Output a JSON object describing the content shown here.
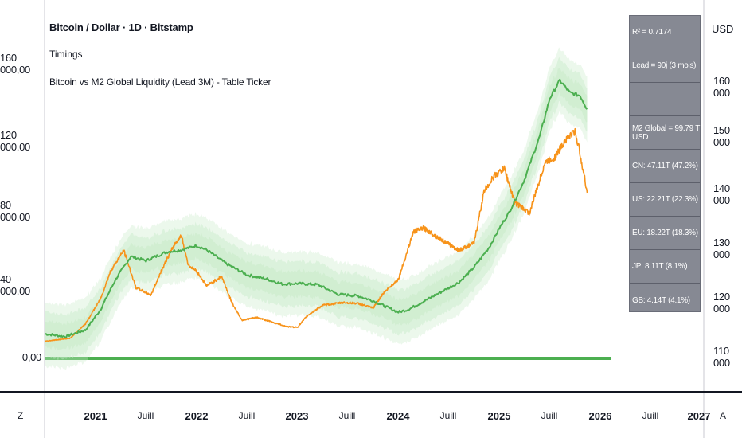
{
  "header": {
    "symbol_title": "Bitcoin / Dollar · 1D · Bitstamp",
    "indicator_1": "Timings",
    "indicator_2": "Bitcoin vs M2 Global Liquidity (Lead 3M) - Table Ticker"
  },
  "right_axis": {
    "unit": "USD",
    "ticks": [
      "160 000",
      "150 000",
      "140 000",
      "130 000",
      "120 000",
      "110 000"
    ]
  },
  "left_axis": {
    "ticks": [
      "160 000,00",
      "120 000,00",
      "80 000,00",
      "40 000,00",
      "0,00"
    ]
  },
  "time_axis": {
    "labels": [
      "2021",
      "Juill",
      "2022",
      "Juill",
      "2023",
      "Juill",
      "2024",
      "Juill",
      "2025",
      "Juill",
      "2026",
      "Juill",
      "2027"
    ]
  },
  "controls": {
    "z_label": "Z",
    "a_label": "A"
  },
  "table": {
    "rows": [
      "R² = 0.7174",
      "Lead = 90j (3 mois)",
      "",
      "M2 Global = 99.79 T USD",
      "CN: 47.11T (47.2%)",
      "US: 22.21T (22.3%)",
      "EU: 18.22T (18.3%)",
      "JP: 8.11T (8.1%)",
      "GB: 4.14T (4.1%)"
    ]
  },
  "colors": {
    "btc": "#f7931a",
    "m2": "#4caf50",
    "band": "#c8ebc9",
    "zero_line": "#4caf50",
    "table_bg": "#868993"
  },
  "chart_data": {
    "type": "line",
    "title": "Bitcoin vs M2 Global Liquidity (Lead 3M)",
    "x_unit": "year",
    "series": [
      {
        "name": "Bitcoin / Dollar",
        "axis": "left",
        "x": [
          2020.5,
          2020.75,
          2020.9,
          2021.05,
          2021.15,
          2021.28,
          2021.4,
          2021.55,
          2021.65,
          2021.78,
          2021.85,
          2021.92,
          2022.0,
          2022.1,
          2022.25,
          2022.35,
          2022.45,
          2022.6,
          2022.75,
          2022.9,
          2023.0,
          2023.1,
          2023.25,
          2023.45,
          2023.6,
          2023.75,
          2023.85,
          2024.0,
          2024.15,
          2024.25,
          2024.45,
          2024.6,
          2024.75,
          2024.85,
          2024.95,
          2025.05,
          2025.15,
          2025.3,
          2025.45,
          2025.55,
          2025.65,
          2025.75,
          2025.8,
          2025.87
        ],
        "y": [
          9200,
          10800,
          18500,
          32000,
          47000,
          58000,
          38000,
          34000,
          47000,
          61000,
          66000,
          50000,
          47000,
          39000,
          44000,
          30000,
          20500,
          22000,
          19500,
          17000,
          16700,
          23000,
          28500,
          30000,
          29500,
          27000,
          35000,
          42500,
          68000,
          70000,
          63000,
          58000,
          62000,
          90000,
          98000,
          102000,
          84000,
          78000,
          105000,
          108000,
          117000,
          122000,
          110000,
          89000
        ]
      },
      {
        "name": "M2 Global Liquidity (Lead 3M)",
        "axis": "right",
        "x": [
          2020.5,
          2020.7,
          2020.9,
          2021.05,
          2021.2,
          2021.35,
          2021.5,
          2021.7,
          2021.85,
          2022.0,
          2022.1,
          2022.3,
          2022.5,
          2022.7,
          2022.85,
          2023.0,
          2023.2,
          2023.4,
          2023.6,
          2023.75,
          2023.9,
          2024.0,
          2024.1,
          2024.3,
          2024.45,
          2024.6,
          2024.75,
          2024.9,
          2025.0,
          2025.1,
          2025.25,
          2025.4,
          2025.5,
          2025.6,
          2025.7,
          2025.8,
          2025.87
        ],
        "y": [
          113500,
          113000,
          114200,
          118000,
          123600,
          127800,
          127000,
          128600,
          129000,
          129800,
          129000,
          126400,
          124400,
          123600,
          122700,
          122800,
          122600,
          120800,
          120500,
          119600,
          118300,
          117500,
          118000,
          120000,
          121500,
          123000,
          125800,
          129500,
          133000,
          136000,
          142000,
          150000,
          157000,
          160300,
          158000,
          157500,
          155000
        ]
      }
    ],
    "left_ylim": [
      -2000,
      190000
    ],
    "right_ylim": [
      106100,
      170400
    ],
    "xlim": [
      2020.5,
      2027.0
    ],
    "zero_line": 0
  }
}
